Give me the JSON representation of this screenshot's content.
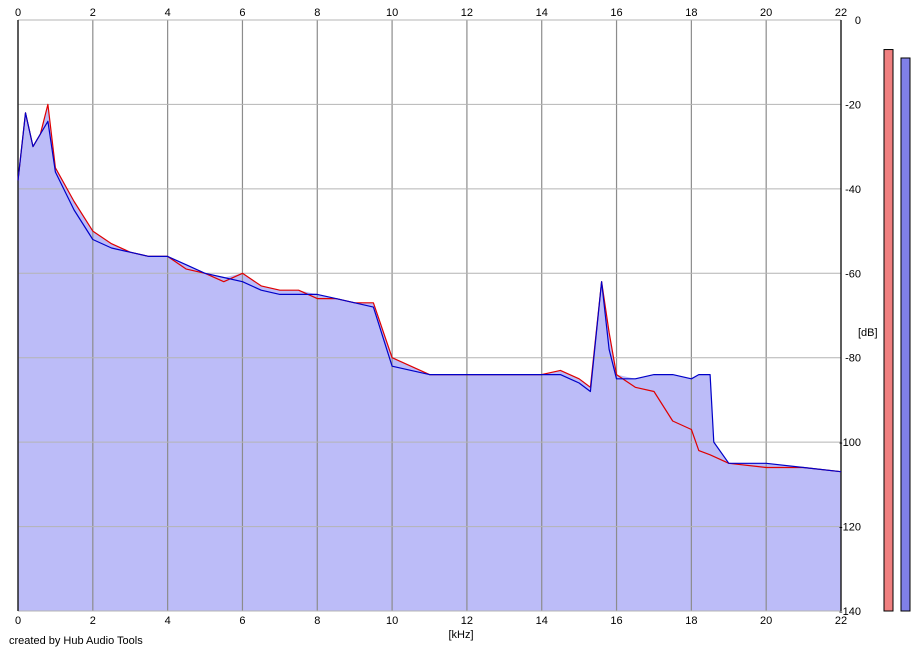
{
  "credit": "created by Hub Audio Tools",
  "chart_data": {
    "type": "line",
    "xlabel": "[kHz]",
    "ylabel": "[dB]",
    "xlim": [
      0,
      22
    ],
    "ylim": [
      -140,
      0
    ],
    "x_ticks": [
      0,
      2,
      4,
      6,
      8,
      10,
      12,
      14,
      16,
      18,
      20,
      22
    ],
    "y_ticks": [
      0,
      -20,
      -40,
      -60,
      -80,
      -100,
      -120,
      -140
    ],
    "grid": true,
    "colors": {
      "red": "#e00000",
      "blue": "#0000c8",
      "fill": "#bcbcf8",
      "meter_red": "#f08080",
      "meter_blue": "#8080e8"
    },
    "series": [
      {
        "color": "red",
        "x": [
          0,
          0.2,
          0.4,
          0.6,
          0.8,
          1,
          1.5,
          2,
          2.5,
          3,
          3.5,
          4,
          4.5,
          5,
          5.5,
          6,
          6.5,
          7,
          7.5,
          8,
          8.5,
          9,
          9.5,
          10,
          11,
          12,
          13,
          14,
          14.5,
          15,
          15.3,
          15.6,
          15.8,
          16,
          16.5,
          17,
          17.5,
          18,
          18.2,
          18.5,
          19,
          20,
          21,
          22
        ],
        "y": [
          -38,
          -22,
          -30,
          -27,
          -20,
          -35,
          -43,
          -50,
          -53,
          -55,
          -56,
          -56,
          -59,
          -60,
          -62,
          -60,
          -63,
          -64,
          -64,
          -66,
          -66,
          -67,
          -67,
          -80,
          -84,
          -84,
          -84,
          -84,
          -83,
          -85,
          -87,
          -62,
          -74,
          -84,
          -87,
          -88,
          -95,
          -97,
          -102,
          -103,
          -105,
          -106,
          -106,
          -107
        ]
      },
      {
        "color": "blue",
        "x": [
          0,
          0.2,
          0.4,
          0.6,
          0.8,
          1,
          1.5,
          2,
          2.5,
          3,
          3.5,
          4,
          4.5,
          5,
          5.5,
          6,
          6.5,
          7,
          7.5,
          8,
          8.5,
          9,
          9.5,
          10,
          11,
          12,
          13,
          14,
          14.5,
          15,
          15.3,
          15.6,
          15.8,
          16,
          16.5,
          17,
          17.5,
          18,
          18.2,
          18.5,
          18.6,
          19,
          20,
          21,
          22
        ],
        "y": [
          -38,
          -22,
          -30,
          -27,
          -24,
          -36,
          -45,
          -52,
          -54,
          -55,
          -56,
          -56,
          -58,
          -60,
          -61,
          -62,
          -64,
          -65,
          -65,
          -65,
          -66,
          -67,
          -68,
          -82,
          -84,
          -84,
          -84,
          -84,
          -84,
          -86,
          -88,
          -62,
          -78,
          -85,
          -85,
          -84,
          -84,
          -85,
          -84,
          -84,
          -100,
          -105,
          -105,
          -106,
          -107
        ]
      }
    ],
    "level_meters": [
      {
        "color": "red",
        "value": -7
      },
      {
        "color": "blue",
        "value": -9
      }
    ]
  }
}
